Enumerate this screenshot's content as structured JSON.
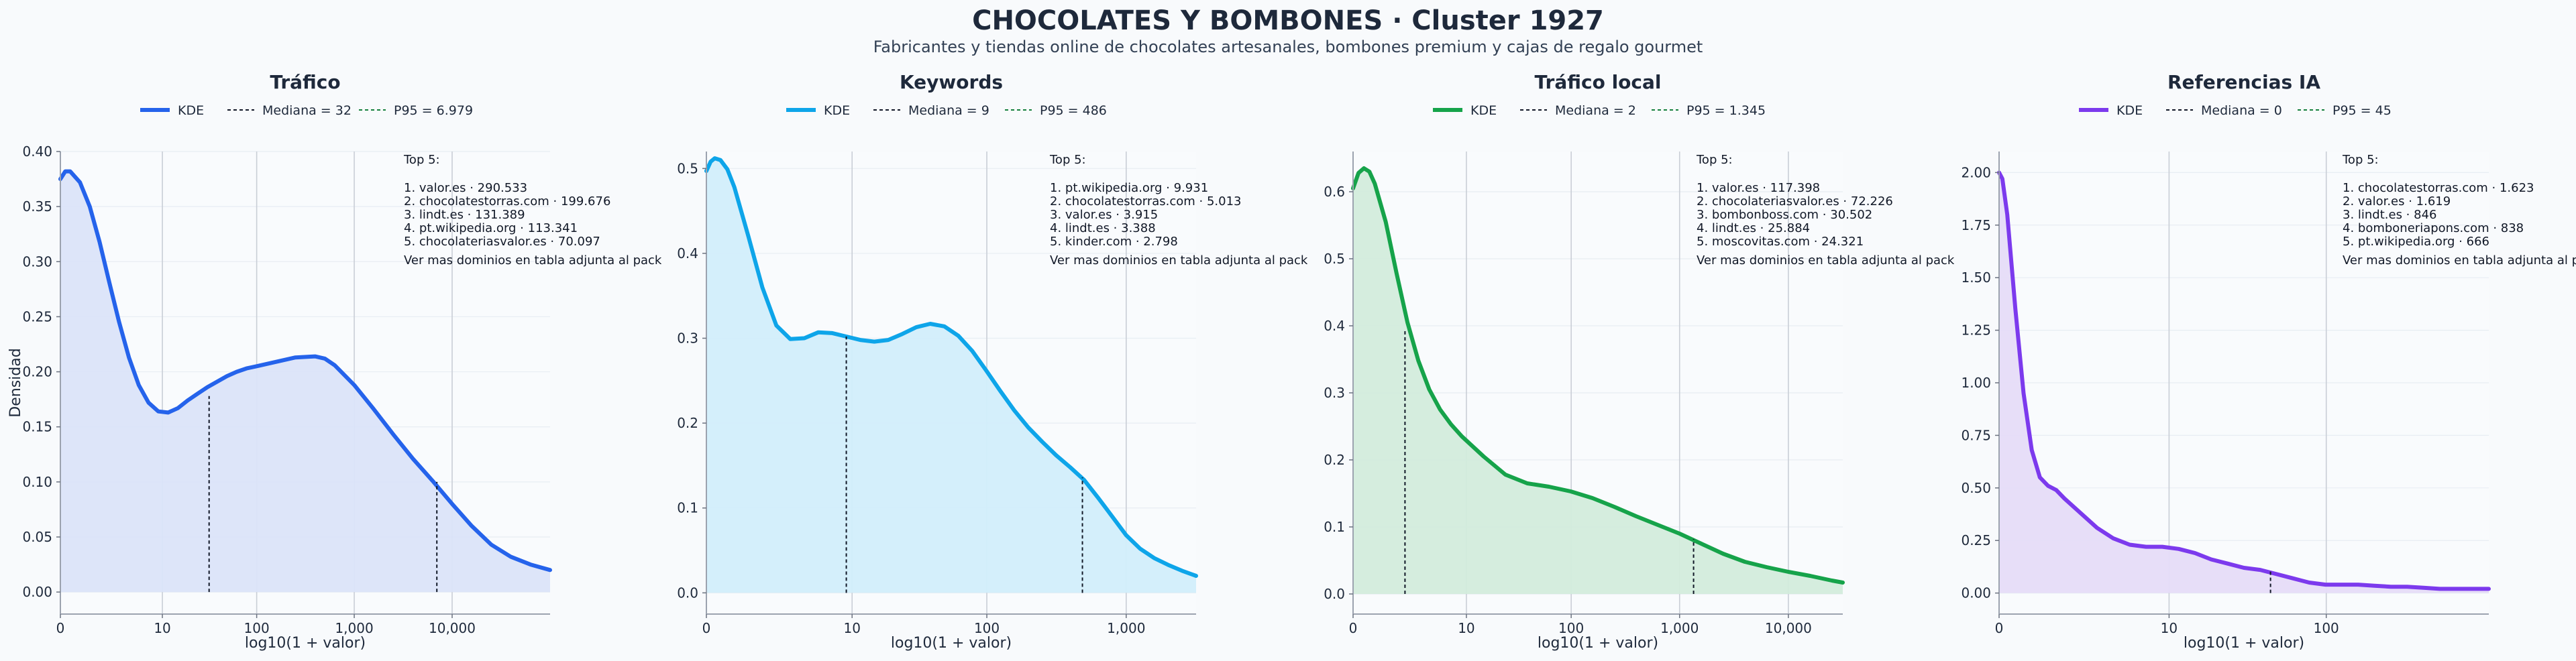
{
  "figure": {
    "title": "CHOCOLATES Y BOMBONES · Cluster 1927",
    "subtitle": "Fabricantes y tiendas online de chocolates artesanales, bombones premium y cajas de regalo gourmet"
  },
  "chart_data": [
    {
      "type": "area",
      "title": "Tráfico",
      "xlabel": "log10(1 + valor)",
      "ylabel": "Densidad",
      "color": "#2563eb",
      "fill": "#dbe4f9",
      "xlim": [
        0,
        5.0
      ],
      "ylim": [
        -0.02,
        0.4
      ],
      "yticks": [
        0.0,
        0.05,
        0.1,
        0.15,
        0.2,
        0.25,
        0.3,
        0.35,
        0.4
      ],
      "ytick_labels": [
        "0.00",
        "0.05",
        "0.10",
        "0.15",
        "0.20",
        "0.25",
        "0.30",
        "0.35",
        "0.40"
      ],
      "xticks": [
        0,
        1.0414,
        2.0043,
        3.0004,
        4.0
      ],
      "xtick_labels": [
        "0",
        "10",
        "100",
        "1,000",
        "10,000"
      ],
      "legend": {
        "kde": "KDE",
        "median": "Mediana = 32",
        "p95": "P95 = 6.979"
      },
      "median_x": 1.5185,
      "median_y": 0.178,
      "p95_x": 3.8439,
      "p95_y": 0.1,
      "kde": {
        "x": [
          0,
          0.05,
          0.1,
          0.2,
          0.3,
          0.4,
          0.5,
          0.6,
          0.7,
          0.8,
          0.9,
          1.0,
          1.1,
          1.2,
          1.3,
          1.4,
          1.5,
          1.6,
          1.7,
          1.8,
          1.9,
          2.0,
          2.2,
          2.4,
          2.6,
          2.7,
          2.8,
          3.0,
          3.2,
          3.4,
          3.6,
          3.8,
          4.0,
          4.2,
          4.4,
          4.6,
          4.8,
          5.0
        ],
        "y": [
          0.375,
          0.382,
          0.382,
          0.372,
          0.35,
          0.318,
          0.281,
          0.245,
          0.213,
          0.188,
          0.172,
          0.164,
          0.163,
          0.167,
          0.174,
          0.18,
          0.186,
          0.191,
          0.196,
          0.2,
          0.203,
          0.205,
          0.209,
          0.213,
          0.214,
          0.212,
          0.206,
          0.188,
          0.166,
          0.143,
          0.121,
          0.101,
          0.08,
          0.06,
          0.043,
          0.032,
          0.025,
          0.02
        ]
      },
      "annotation": {
        "header": "Top 5:",
        "lines": [
          "1. valor.es · 290.533",
          "2. chocolatestorras.com · 199.676",
          "3. lindt.es · 131.389",
          "4. pt.wikipedia.org · 113.341",
          "5. chocolateriasvalor.es · 70.097"
        ],
        "footer": "Ver mas dominios en tabla adjunta al pack"
      }
    },
    {
      "type": "area",
      "title": "Keywords",
      "xlabel": "log10(1 + valor)",
      "ylabel": "",
      "color": "#0ea5e9",
      "fill": "#d2eefb",
      "xlim": [
        0,
        3.5
      ],
      "ylim": [
        -0.025,
        0.52
      ],
      "yticks": [
        0.0,
        0.1,
        0.2,
        0.3,
        0.4,
        0.5
      ],
      "ytick_labels": [
        "0.0",
        "0.1",
        "0.2",
        "0.3",
        "0.4",
        "0.5"
      ],
      "xticks": [
        0,
        1.0414,
        2.0043,
        3.0004
      ],
      "xtick_labels": [
        "0",
        "10",
        "100",
        "1,000"
      ],
      "legend": {
        "kde": "KDE",
        "median": "Mediana = 9",
        "p95": "P95 = 486"
      },
      "median_x": 1.0,
      "median_y": 0.302,
      "p95_x": 2.6875,
      "p95_y": 0.136,
      "kde": {
        "x": [
          0,
          0.03,
          0.06,
          0.1,
          0.15,
          0.2,
          0.3,
          0.4,
          0.5,
          0.6,
          0.7,
          0.8,
          0.9,
          1.0,
          1.1,
          1.2,
          1.3,
          1.4,
          1.5,
          1.6,
          1.7,
          1.8,
          1.9,
          2.0,
          2.1,
          2.2,
          2.3,
          2.4,
          2.5,
          2.6,
          2.7,
          2.8,
          2.9,
          3.0,
          3.1,
          3.2,
          3.3,
          3.4,
          3.5
        ],
        "y": [
          0.497,
          0.508,
          0.512,
          0.51,
          0.499,
          0.478,
          0.42,
          0.36,
          0.315,
          0.299,
          0.3,
          0.307,
          0.306,
          0.302,
          0.298,
          0.296,
          0.298,
          0.305,
          0.313,
          0.317,
          0.314,
          0.303,
          0.285,
          0.262,
          0.238,
          0.215,
          0.195,
          0.178,
          0.162,
          0.148,
          0.133,
          0.112,
          0.09,
          0.068,
          0.052,
          0.041,
          0.033,
          0.026,
          0.02
        ]
      },
      "annotation": {
        "header": "Top 5:",
        "lines": [
          "1. pt.wikipedia.org · 9.931",
          "2. chocolatestorras.com · 5.013",
          "3. valor.es · 3.915",
          "4. lindt.es · 3.388",
          "5. kinder.com · 2.798"
        ],
        "footer": "Ver mas dominios en tabla adjunta al pack"
      }
    },
    {
      "type": "area",
      "title": "Tráfico local",
      "xlabel": "log10(1 + valor)",
      "ylabel": "",
      "color": "#16a34a",
      "fill": "#d3ecdc",
      "xlim": [
        0,
        4.5
      ],
      "ylim": [
        -0.03,
        0.66
      ],
      "yticks": [
        0.0,
        0.1,
        0.2,
        0.3,
        0.4,
        0.5,
        0.6
      ],
      "ytick_labels": [
        "0.0",
        "0.1",
        "0.2",
        "0.3",
        "0.4",
        "0.5",
        "0.6"
      ],
      "xticks": [
        0,
        1.0414,
        2.0043,
        3.0004,
        4.0
      ],
      "xtick_labels": [
        "0",
        "10",
        "100",
        "1,000",
        "10,000"
      ],
      "legend": {
        "kde": "KDE",
        "median": "Mediana = 2",
        "p95": "P95 = 1.345"
      },
      "median_x": 0.4771,
      "median_y": 0.395,
      "p95_x": 3.129,
      "p95_y": 0.082,
      "kde": {
        "x": [
          0,
          0.05,
          0.1,
          0.15,
          0.2,
          0.3,
          0.4,
          0.5,
          0.6,
          0.7,
          0.8,
          0.9,
          1.0,
          1.2,
          1.4,
          1.6,
          1.8,
          2.0,
          2.2,
          2.4,
          2.6,
          2.8,
          3.0,
          3.2,
          3.4,
          3.6,
          3.8,
          4.0,
          4.2,
          4.4,
          4.5
        ],
        "y": [
          0.605,
          0.628,
          0.635,
          0.63,
          0.612,
          0.555,
          0.478,
          0.405,
          0.348,
          0.305,
          0.275,
          0.253,
          0.235,
          0.205,
          0.178,
          0.165,
          0.16,
          0.153,
          0.143,
          0.13,
          0.116,
          0.103,
          0.09,
          0.075,
          0.06,
          0.048,
          0.04,
          0.033,
          0.027,
          0.02,
          0.017
        ]
      },
      "annotation": {
        "header": "Top 5:",
        "lines": [
          "1. valor.es · 117.398",
          "2. chocolateriasvalor.es · 72.226",
          "3. bombonboss.com · 30.502",
          "4. lindt.es · 25.884",
          "5. moscovitas.com · 24.321"
        ],
        "footer": "Ver mas dominios en tabla adjunta al pack"
      }
    },
    {
      "type": "area",
      "title": "Referencias IA",
      "xlabel": "log10(1 + valor)",
      "ylabel": "",
      "color": "#7c3aed",
      "fill": "#e6dcf8",
      "xlim": [
        0,
        3.0
      ],
      "ylim": [
        -0.1,
        2.1
      ],
      "yticks": [
        0.0,
        0.25,
        0.5,
        0.75,
        1.0,
        1.25,
        1.5,
        1.75,
        2.0
      ],
      "ytick_labels": [
        "0.00",
        "0.25",
        "0.50",
        "0.75",
        "1.00",
        "1.25",
        "1.50",
        "1.75",
        "2.00"
      ],
      "xticks": [
        0,
        1.0414,
        2.0043
      ],
      "xtick_labels": [
        "0",
        "10",
        "100"
      ],
      "legend": {
        "kde": "KDE",
        "median": "Mediana = 0",
        "p95": "P95 = 45"
      },
      "median_x": 0.0,
      "median_y": 1.98,
      "p95_x": 1.6628,
      "p95_y": 0.11,
      "kde": {
        "x": [
          0,
          0.02,
          0.05,
          0.1,
          0.15,
          0.2,
          0.25,
          0.3,
          0.35,
          0.4,
          0.5,
          0.6,
          0.7,
          0.8,
          0.9,
          1.0,
          1.1,
          1.2,
          1.3,
          1.4,
          1.5,
          1.6,
          1.7,
          1.8,
          1.9,
          2.0,
          2.1,
          2.2,
          2.3,
          2.4,
          2.5,
          2.6,
          2.7,
          2.8,
          2.9,
          3.0
        ],
        "y": [
          2.0,
          1.97,
          1.8,
          1.35,
          0.95,
          0.68,
          0.55,
          0.51,
          0.49,
          0.45,
          0.38,
          0.31,
          0.26,
          0.23,
          0.22,
          0.22,
          0.21,
          0.19,
          0.16,
          0.14,
          0.12,
          0.11,
          0.09,
          0.07,
          0.05,
          0.04,
          0.04,
          0.04,
          0.035,
          0.03,
          0.03,
          0.025,
          0.02,
          0.02,
          0.02,
          0.02
        ]
      },
      "annotation": {
        "header": "Top 5:",
        "lines": [
          "1. chocolatestorras.com · 1.623",
          "2. valor.es · 1.619",
          "3. lindt.es · 846",
          "4. bomboneriapons.com · 838",
          "5. pt.wikipedia.org · 666"
        ],
        "footer": "Ver mas dominios en tabla adjunta al pack"
      }
    }
  ]
}
